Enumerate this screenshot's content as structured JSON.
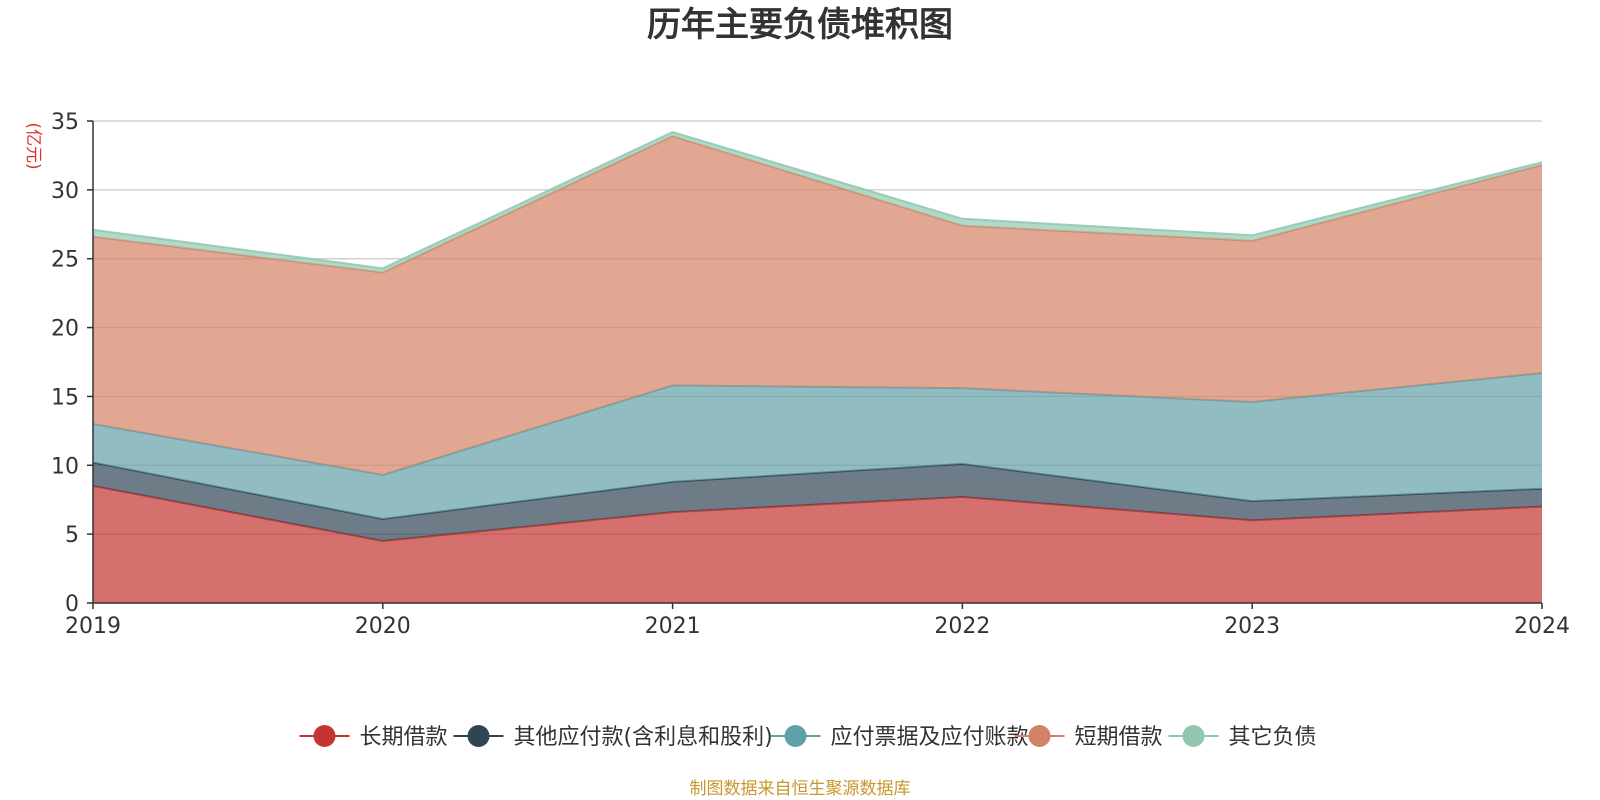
{
  "page": {
    "title": "历年主要负债堆积图",
    "source_note": "制图数据来自恒生聚源数据库"
  },
  "chart_data": {
    "type": "area",
    "stacked": true,
    "title": "历年主要负债堆积图",
    "unit": "(亿元)",
    "unit_color": "#e0312d",
    "x": [
      "2019",
      "2020",
      "2021",
      "2022",
      "2023",
      "2024"
    ],
    "ylim": [
      0,
      35
    ],
    "yticks": [
      0,
      5,
      10,
      15,
      20,
      25,
      30,
      35
    ],
    "grid": true,
    "legend_position": "bottom",
    "series": [
      {
        "name": "长期借款",
        "color": "#c23531",
        "values": [
          8.5,
          4.5,
          6.6,
          7.7,
          6.0,
          7.0
        ]
      },
      {
        "name": "其他应付款(含利息和股利)",
        "color": "#2f4554",
        "values": [
          1.7,
          1.6,
          2.2,
          2.4,
          1.4,
          1.3
        ]
      },
      {
        "name": "应付票据及应付账款",
        "color": "#61a0a8",
        "values": [
          2.8,
          3.2,
          7.0,
          5.5,
          7.2,
          8.4
        ]
      },
      {
        "name": "短期借款",
        "color": "#d48265",
        "values": [
          13.6,
          14.7,
          18.1,
          11.8,
          11.7,
          15.1
        ]
      },
      {
        "name": "其它负债",
        "color": "#91c7ae",
        "values": [
          0.5,
          0.3,
          0.3,
          0.5,
          0.4,
          0.2
        ]
      }
    ]
  }
}
